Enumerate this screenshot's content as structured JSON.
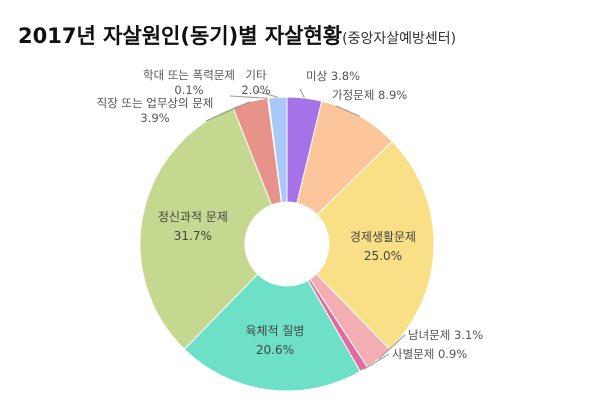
{
  "title": "2017년 자살원인(동기)별 자살현황",
  "subtitle": "(중앙자살예방센터)",
  "chart_data": {
    "type": "pie",
    "donut": true,
    "slices": [
      {
        "name": "미상",
        "value": 3.8,
        "label": "3.8%",
        "color": "#9dc3e6"
      },
      {
        "name": "가정문제",
        "value": 8.9,
        "label": "8.9%",
        "color": "#fcc59a"
      },
      {
        "name": "경제생활문제",
        "value": 25.0,
        "label": "25.0%",
        "color": "#f9df86"
      },
      {
        "name": "남녀문제",
        "value": 3.1,
        "label": "3.1%",
        "color": "#f4aeb1"
      },
      {
        "name": "사별문제",
        "value": 0.9,
        "label": "0.9%",
        "color": "#e06c9f"
      },
      {
        "name": "육체적 질병",
        "value": 20.6,
        "label": "20.6%",
        "color": "#6fe0c8"
      },
      {
        "name": "정신과적 문제",
        "value": 31.7,
        "label": "31.7%",
        "color": "#c4d88f"
      },
      {
        "name": "직장 또는 업무상의 문제",
        "value": 3.9,
        "label": "3.9%",
        "color": "#e8938a"
      },
      {
        "name": "학대 또는 폭력문제",
        "value": 0.1,
        "label": "0.1%",
        "color": "#e6ceb0"
      },
      {
        "name": "기타",
        "value": 2.0,
        "label": "2.0%",
        "color": "#a9c8f8"
      }
    ],
    "mystery_slice_color": "#a672e8",
    "outside_labels": [
      "미상",
      "가정문제",
      "남녀문제",
      "사별문제",
      "직장 또는 업무상의 문제",
      "학대 또는 폭력문제",
      "기타"
    ],
    "inside_labels": [
      "경제생활문제",
      "육체적 질병",
      "정신과적 문제"
    ]
  }
}
